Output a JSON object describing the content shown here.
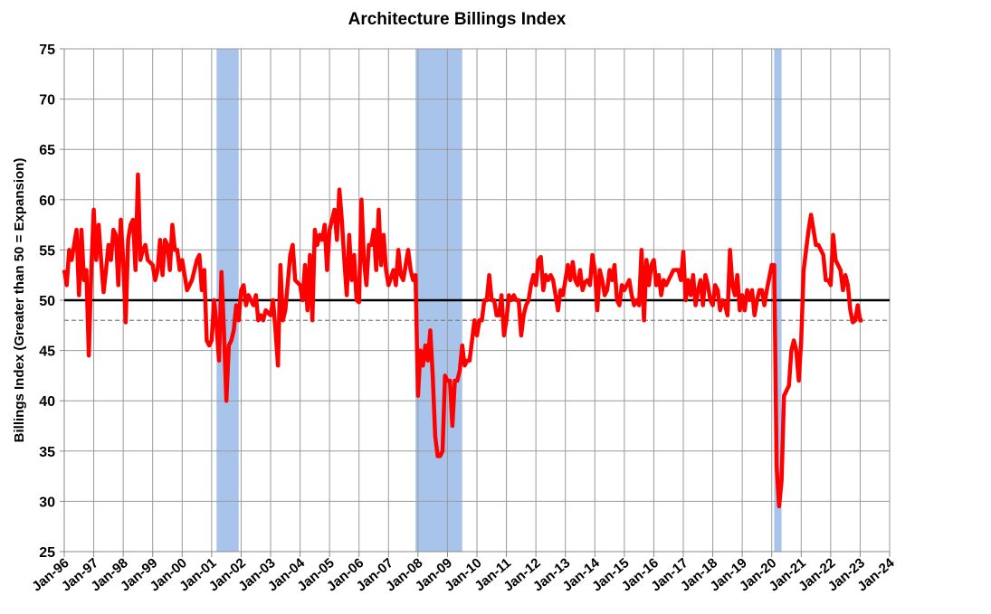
{
  "chart_data": {
    "type": "line",
    "title": "Architecture Billings Index",
    "y_label": "Billings Index (Greater than 50 = Expansion)",
    "ylim": [
      25,
      75
    ],
    "yticks": [
      25,
      30,
      35,
      40,
      45,
      50,
      55,
      60,
      65,
      70,
      75
    ],
    "xlim": [
      "1996-01",
      "2024-01"
    ],
    "xticks": [
      {
        "value": "1996-01",
        "label": "Jan-96"
      },
      {
        "value": "1997-01",
        "label": "Jan-97"
      },
      {
        "value": "1998-01",
        "label": "Jan-98"
      },
      {
        "value": "1999-01",
        "label": "Jan-99"
      },
      {
        "value": "2000-01",
        "label": "Jan-00"
      },
      {
        "value": "2001-01",
        "label": "Jan-01"
      },
      {
        "value": "2002-01",
        "label": "Jan-02"
      },
      {
        "value": "2003-01",
        "label": "Jan-03"
      },
      {
        "value": "2004-01",
        "label": "Jan-04"
      },
      {
        "value": "2005-01",
        "label": "Jan-05"
      },
      {
        "value": "2006-01",
        "label": "Jan-06"
      },
      {
        "value": "2007-01",
        "label": "Jan-07"
      },
      {
        "value": "2008-01",
        "label": "Jan-08"
      },
      {
        "value": "2009-01",
        "label": "Jan-09"
      },
      {
        "value": "2010-01",
        "label": "Jan-10"
      },
      {
        "value": "2011-01",
        "label": "Jan-11"
      },
      {
        "value": "2012-01",
        "label": "Jan-12"
      },
      {
        "value": "2013-01",
        "label": "Jan-13"
      },
      {
        "value": "2014-01",
        "label": "Jan-14"
      },
      {
        "value": "2015-01",
        "label": "Jan-15"
      },
      {
        "value": "2016-01",
        "label": "Jan-16"
      },
      {
        "value": "2017-01",
        "label": "Jan-17"
      },
      {
        "value": "2018-01",
        "label": "Jan-18"
      },
      {
        "value": "2019-01",
        "label": "Jan-19"
      },
      {
        "value": "2020-01",
        "label": "Jan-20"
      },
      {
        "value": "2021-01",
        "label": "Jan-21"
      },
      {
        "value": "2022-01",
        "label": "Jan-22"
      },
      {
        "value": "2023-01",
        "label": "Jan-23"
      },
      {
        "value": "2024-01",
        "label": "Jan-24"
      }
    ],
    "grid": true,
    "recessions": [
      {
        "start": "2001-03",
        "end": "2001-11"
      },
      {
        "start": "2007-12",
        "end": "2009-06"
      },
      {
        "start": "2020-02",
        "end": "2020-04"
      }
    ],
    "recession_color": "#a9c4eb",
    "reference_lines": [
      {
        "value": 50,
        "color": "#000000",
        "style": "solid"
      },
      {
        "value": 48,
        "color": "#7f7f7f",
        "style": "dashed"
      }
    ],
    "x": [
      "1996-01",
      "1996-02",
      "1996-03",
      "1996-04",
      "1996-06",
      "1996-07",
      "1996-08",
      "1996-09",
      "1996-10",
      "1996-11",
      "1996-12",
      "1997-01",
      "1997-02",
      "1997-03",
      "1997-04",
      "1997-05",
      "1997-06",
      "1997-07",
      "1997-08",
      "1997-09",
      "1997-10",
      "1997-11",
      "1997-12",
      "1998-01",
      "1998-02",
      "1998-03",
      "1998-04",
      "1998-05",
      "1998-06",
      "1998-07",
      "1998-08",
      "1998-09",
      "1998-10",
      "1998-11",
      "1999-01",
      "1999-02",
      "1999-03",
      "1999-04",
      "1999-05",
      "1999-06",
      "1999-07",
      "1999-08",
      "1999-09",
      "1999-10",
      "1999-11",
      "1999-12",
      "2000-01",
      "2000-03",
      "2000-05",
      "2000-07",
      "2000-08",
      "2000-09",
      "2000-10",
      "2000-11",
      "2000-12",
      "2001-01",
      "2001-02",
      "2001-03",
      "2001-04",
      "2001-05",
      "2001-06",
      "2001-07",
      "2001-08",
      "2001-09",
      "2001-10",
      "2001-11",
      "2001-12",
      "2002-01",
      "2002-02",
      "2002-03",
      "2002-04",
      "2002-05",
      "2002-06",
      "2002-07",
      "2002-08",
      "2002-09",
      "2002-10",
      "2002-11",
      "2003-01",
      "2003-02",
      "2003-03",
      "2003-04",
      "2003-05",
      "2003-06",
      "2003-07",
      "2003-09",
      "2003-10",
      "2003-11",
      "2004-01",
      "2004-02",
      "2004-03",
      "2004-04",
      "2004-05",
      "2004-06",
      "2004-07",
      "2004-08",
      "2004-09",
      "2004-10",
      "2004-11",
      "2004-12",
      "2005-01",
      "2005-03",
      "2005-04",
      "2005-05",
      "2005-06",
      "2005-07",
      "2005-08",
      "2005-09",
      "2005-10",
      "2005-11",
      "2005-12",
      "2006-01",
      "2006-02",
      "2006-03",
      "2006-04",
      "2006-05",
      "2006-06",
      "2006-07",
      "2006-08",
      "2006-09",
      "2006-10",
      "2006-11",
      "2006-12",
      "2007-01",
      "2007-03",
      "2007-04",
      "2007-05",
      "2007-06",
      "2007-07",
      "2007-09",
      "2007-10",
      "2007-11",
      "2007-12",
      "2008-01",
      "2008-02",
      "2008-03",
      "2008-04",
      "2008-05",
      "2008-06",
      "2008-07",
      "2008-08",
      "2008-09",
      "2008-10",
      "2008-11",
      "2008-12",
      "2009-01",
      "2009-02",
      "2009-03",
      "2009-04",
      "2009-05",
      "2009-06",
      "2009-07",
      "2009-08",
      "2009-09",
      "2009-10",
      "2009-11",
      "2009-12",
      "2010-01",
      "2010-02",
      "2010-03",
      "2010-04",
      "2010-05",
      "2010-06",
      "2010-07",
      "2010-08",
      "2010-09",
      "2010-10",
      "2010-11",
      "2010-12",
      "2011-01",
      "2011-02",
      "2011-03",
      "2011-04",
      "2011-05",
      "2011-06",
      "2011-07",
      "2011-08",
      "2011-09",
      "2011-10",
      "2011-11",
      "2011-12",
      "2012-01",
      "2012-02",
      "2012-03",
      "2012-04",
      "2012-05",
      "2012-06",
      "2012-07",
      "2012-08",
      "2012-09",
      "2012-10",
      "2012-11",
      "2012-12",
      "2013-01",
      "2013-02",
      "2013-03",
      "2013-04",
      "2013-05",
      "2013-06",
      "2013-07",
      "2013-08",
      "2013-09",
      "2013-10",
      "2013-11",
      "2013-12",
      "2014-01",
      "2014-02",
      "2014-03",
      "2014-04",
      "2014-05",
      "2014-06",
      "2014-07",
      "2014-08",
      "2014-09",
      "2014-10",
      "2014-11",
      "2014-12",
      "2015-01",
      "2015-02",
      "2015-03",
      "2015-04",
      "2015-05",
      "2015-06",
      "2015-07",
      "2015-08",
      "2015-09",
      "2015-10",
      "2015-11",
      "2015-12",
      "2016-01",
      "2016-02",
      "2016-03",
      "2016-04",
      "2016-05",
      "2016-06",
      "2016-07",
      "2016-08",
      "2016-09",
      "2016-10",
      "2016-11",
      "2016-12",
      "2017-01",
      "2017-02",
      "2017-03",
      "2017-04",
      "2017-05",
      "2017-06",
      "2017-07",
      "2017-08",
      "2017-09",
      "2017-10",
      "2017-11",
      "2017-12",
      "2018-01",
      "2018-02",
      "2018-03",
      "2018-04",
      "2018-05",
      "2018-06",
      "2018-07",
      "2018-08",
      "2018-09",
      "2018-10",
      "2018-11",
      "2018-12",
      "2019-01",
      "2019-02",
      "2019-03",
      "2019-04",
      "2019-05",
      "2019-06",
      "2019-07",
      "2019-08",
      "2019-09",
      "2019-10",
      "2019-11",
      "2020-01",
      "2020-02",
      "2020-03",
      "2020-04",
      "2020-05",
      "2020-06",
      "2020-07",
      "2020-08",
      "2020-09",
      "2020-10",
      "2020-11",
      "2020-12",
      "2021-01",
      "2021-02",
      "2021-03",
      "2021-04",
      "2021-05",
      "2021-06",
      "2021-07",
      "2021-08",
      "2021-09",
      "2021-10",
      "2021-11",
      "2021-12",
      "2022-01",
      "2022-02",
      "2022-03",
      "2022-04",
      "2022-05",
      "2022-06",
      "2022-07",
      "2022-08",
      "2022-09",
      "2022-10",
      "2022-11",
      "2022-12",
      "2023-01",
      "2023-02"
    ],
    "series": [
      {
        "name": "Architecture Billings Index",
        "color": "#ff0000",
        "values": [
          53,
          51.5,
          55,
          54,
          57,
          50.5,
          57,
          52,
          53,
          44.5,
          53,
          59,
          54,
          57.5,
          54,
          50.8,
          53,
          55.5,
          54,
          57,
          56.5,
          51.5,
          58,
          54,
          47.8,
          56,
          57.5,
          58,
          53,
          62.5,
          54,
          55,
          55.5,
          54,
          53.5,
          52,
          53,
          56,
          52.5,
          56,
          55.5,
          53,
          57.5,
          55,
          55,
          53,
          54,
          51,
          52,
          54,
          54.5,
          51,
          53,
          46,
          45.5,
          46,
          50,
          47.5,
          44,
          52.8,
          47,
          40,
          45.5,
          46,
          47,
          49.5,
          48,
          51,
          51.5,
          49.5,
          50.5,
          50,
          49.5,
          50.5,
          48,
          48.5,
          48,
          49,
          48.5,
          50,
          47,
          43.5,
          53.5,
          48,
          49,
          54.5,
          55.5,
          52,
          51.5,
          50,
          53.5,
          49,
          54.5,
          48,
          57,
          55.5,
          56.5,
          56,
          57.5,
          53,
          57,
          59,
          56,
          61,
          58,
          54,
          50.5,
          56.5,
          52,
          54.5,
          50,
          49.8,
          60,
          54,
          51.5,
          55.5,
          55.5,
          57,
          53,
          59,
          53.5,
          56.5,
          53,
          51.5,
          53,
          51.5,
          55,
          52.5,
          52,
          55,
          53,
          52,
          52.5,
          40.5,
          45,
          43.5,
          45.5,
          44,
          47,
          42.5,
          36.5,
          34.5,
          34.5,
          35,
          42.5,
          42,
          42,
          37.5,
          42,
          42,
          43,
          45.5,
          43.5,
          44,
          44,
          46,
          48,
          46.5,
          48,
          48,
          50,
          50,
          52.5,
          50,
          50,
          48.5,
          48.5,
          50.5,
          46.5,
          48,
          50.5,
          50,
          50.5,
          50,
          50,
          46.5,
          48.5,
          49.5,
          50,
          51.5,
          52.5,
          51.5,
          54,
          54.3,
          51,
          52.5,
          52,
          52.5,
          52,
          50.5,
          49,
          51,
          50.5,
          52,
          53.5,
          52,
          53.8,
          52,
          51.5,
          53,
          51,
          51.8,
          52,
          51.5,
          54.5,
          53,
          49,
          53,
          52,
          50.5,
          51,
          53,
          52,
          53.5,
          50,
          49.5,
          51.5,
          51,
          51.5,
          52,
          50.5,
          49.5,
          50,
          49.5,
          55,
          48,
          54,
          51.5,
          53.5,
          54,
          51.5,
          52.5,
          50.5,
          52,
          51.5,
          52,
          52.5,
          53,
          53,
          53,
          52,
          54.8,
          50,
          52,
          50.5,
          52.5,
          49.5,
          51,
          52,
          49.5,
          52.5,
          51.5,
          50,
          49.5,
          51.5,
          51,
          49,
          50,
          49.5,
          48.5,
          55,
          51.5,
          50.5,
          52.5,
          49,
          50.5,
          49,
          51,
          50,
          51,
          48.5,
          50,
          51,
          51,
          49.5,
          51,
          53.5,
          53.5,
          33.5,
          29.5,
          32,
          40.5,
          41,
          41.5,
          45,
          46,
          45,
          42,
          46,
          53,
          55,
          57,
          58.5,
          57,
          55.5,
          55.5,
          55,
          54.5,
          52,
          52,
          51.5,
          56.5,
          54,
          53.5,
          53,
          51,
          52.5,
          51.5,
          49,
          47.8,
          48,
          49.5,
          48,
          48
        ]
      }
    ]
  }
}
